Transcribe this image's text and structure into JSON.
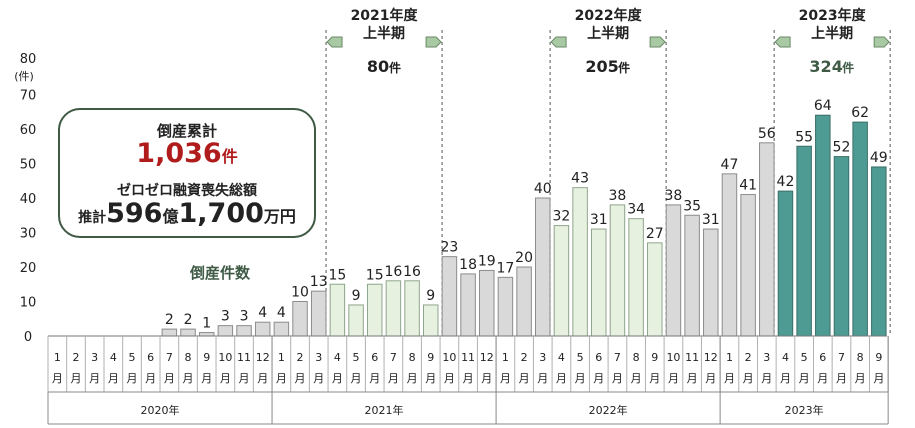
{
  "chart_data": {
    "type": "bar",
    "ylabel_top": "80",
    "ylabel_unit": "(件)",
    "yticks": [
      "0",
      "10",
      "20",
      "30",
      "40",
      "50",
      "60",
      "70"
    ],
    "ylim": [
      0,
      80
    ],
    "series_label": "倒産件数",
    "months": [
      "1",
      "2",
      "3",
      "4",
      "5",
      "6",
      "7",
      "8",
      "9",
      "10",
      "11",
      "12",
      "1",
      "2",
      "3",
      "4",
      "5",
      "6",
      "7",
      "8",
      "9",
      "10",
      "11",
      "12",
      "1",
      "2",
      "3",
      "4",
      "5",
      "6",
      "7",
      "8",
      "9",
      "10",
      "11",
      "12",
      "1",
      "2",
      "3",
      "4",
      "5",
      "6",
      "7",
      "8",
      "9"
    ],
    "month_suffix": "月",
    "years": [
      {
        "label": "2020年",
        "start": 0,
        "count": 12
      },
      {
        "label": "2021年",
        "start": 12,
        "count": 12
      },
      {
        "label": "2022年",
        "start": 24,
        "count": 12
      },
      {
        "label": "2023年",
        "start": 36,
        "count": 9
      }
    ],
    "values": [
      0,
      0,
      0,
      0,
      0,
      0,
      2,
      2,
      1,
      3,
      3,
      4,
      4,
      10,
      13,
      15,
      9,
      15,
      16,
      16,
      9,
      23,
      18,
      19,
      17,
      20,
      40,
      32,
      43,
      31,
      38,
      34,
      27,
      38,
      35,
      31,
      47,
      41,
      56,
      42,
      55,
      64,
      52,
      62,
      49
    ],
    "value_labels": [
      "",
      "",
      "",
      "",
      "",
      "",
      "2",
      "2",
      "1",
      "3",
      "3",
      "4",
      "4",
      "10",
      "13",
      "15",
      "9",
      "15",
      "16",
      "16",
      "9",
      "23",
      "18",
      "19",
      "17",
      "20",
      "40",
      "32",
      "43",
      "31",
      "38",
      "34",
      "27",
      "38",
      "35",
      "31",
      "47",
      "41",
      "56",
      "42",
      "55",
      "64",
      "52",
      "62",
      "49"
    ],
    "highlights": [
      {
        "title": "2021年度",
        "subtitle": "上半期",
        "count": "80",
        "unit": "件",
        "start": 15,
        "end": 20,
        "color": "#e6f2df",
        "stroke": "#8fa48c",
        "count_color": "#222222"
      },
      {
        "title": "2022年度",
        "subtitle": "上半期",
        "count": "205",
        "unit": "件",
        "start": 27,
        "end": 32,
        "color": "#e6f2df",
        "stroke": "#8fa48c",
        "count_color": "#222222"
      },
      {
        "title": "2023年度",
        "subtitle": "上半期",
        "count": "324",
        "unit": "件",
        "start": 39,
        "end": 44,
        "color": "#4e9b93",
        "stroke": "#3a6e68",
        "count_color": "#3f5a45"
      }
    ],
    "default_color": "#d9d9d9",
    "default_stroke": "#8c8c8c"
  },
  "callout": {
    "line1": "倒産累計",
    "count": "1,036",
    "count_unit": "件",
    "line3": "ゼロゼロ融資喪失総額",
    "est_prefix": "推計",
    "amount_a": "596",
    "unit_a": "億",
    "amount_b": "1,700",
    "unit_b": "万円"
  }
}
